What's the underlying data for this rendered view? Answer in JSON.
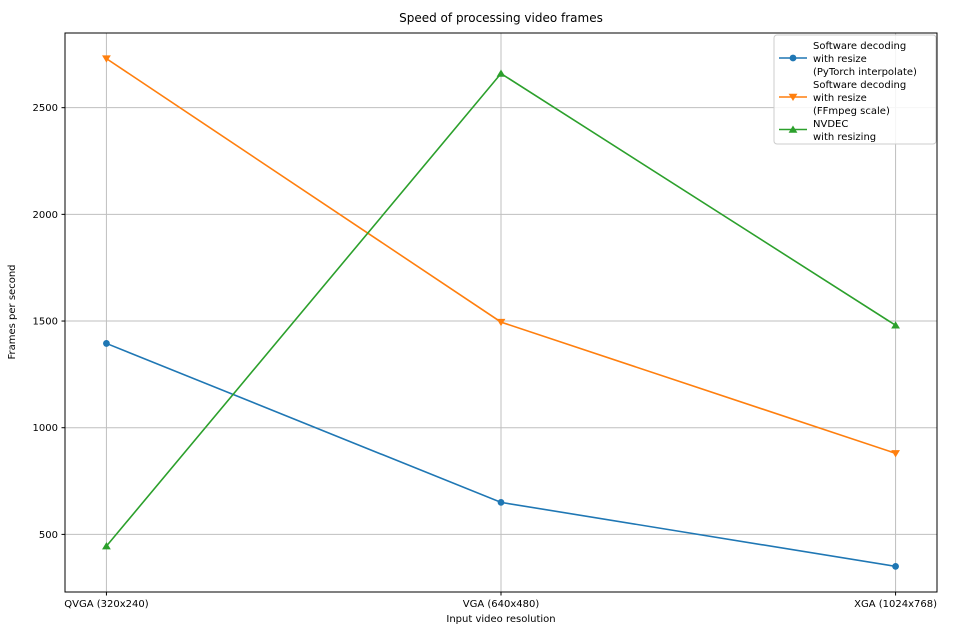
{
  "chart_data": {
    "type": "line",
    "title": "Speed of processing video frames",
    "xlabel": "Input video resolution",
    "ylabel": "Frames per second",
    "categories": [
      "QVGA (320x240)",
      "VGA (640x480)",
      "XGA (1024x768)"
    ],
    "series": [
      {
        "name": "Software decoding with resize (PyTorch interpolate)",
        "label_lines": [
          "Software decoding",
          "with resize",
          "(PyTorch interpolate)"
        ],
        "color": "#1f77b4",
        "marker": "circle",
        "values": [
          1395,
          650,
          350
        ]
      },
      {
        "name": "Software decoding with resize (FFmpeg scale)",
        "label_lines": [
          "Software decoding",
          "with resize",
          "(FFmpeg scale)"
        ],
        "color": "#ff7f0e",
        "marker": "triangle-down",
        "values": [
          2730,
          1495,
          880
        ]
      },
      {
        "name": "NVDEC with resizing",
        "label_lines": [
          "NVDEC",
          "with resizing"
        ],
        "color": "#2ca02c",
        "marker": "triangle-up",
        "values": [
          445,
          2660,
          1480
        ]
      }
    ],
    "yticks": [
      500,
      1000,
      1500,
      2000,
      2500
    ],
    "ylim": [
      230,
      2850
    ],
    "grid": true,
    "grid_color": "#bfbfbf",
    "axis_color": "#000000",
    "legend_position": "upper right"
  }
}
